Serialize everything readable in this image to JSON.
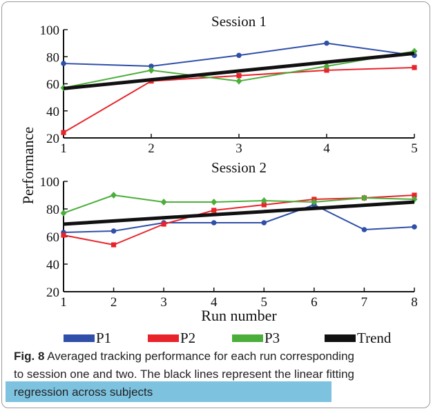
{
  "ylabel": "Performance",
  "xlabel": "Run number",
  "caption": {
    "fig_label": "Fig. 8",
    "line1": "Averaged tracking performance for each run corresponding",
    "line2": "to session one and two. The black lines represent the linear fitting",
    "line3": "regression across subjects"
  },
  "legend": [
    "P1",
    "P2",
    "P3",
    "Trend"
  ],
  "colors": {
    "P1": "#2f4fa8",
    "P2": "#e8232a",
    "P3": "#4cae3a",
    "Trend": "#111111"
  },
  "chart_data": [
    {
      "type": "line",
      "title": "Session 1",
      "x": [
        1,
        2,
        3,
        4,
        5
      ],
      "xlim": [
        1,
        5
      ],
      "ylim": [
        20,
        100
      ],
      "yticks": [
        20,
        40,
        60,
        80,
        100
      ],
      "series": [
        {
          "name": "P1",
          "values": [
            75,
            73,
            81,
            90,
            81
          ],
          "marker": "circle"
        },
        {
          "name": "P2",
          "values": [
            24,
            62,
            66,
            70,
            72
          ],
          "marker": "square"
        },
        {
          "name": "P3",
          "values": [
            57,
            70,
            62,
            73,
            84
          ],
          "marker": "diamond"
        },
        {
          "name": "Trend",
          "values": [
            56.5,
            63,
            69.5,
            76,
            82.5
          ],
          "marker": "none"
        }
      ]
    },
    {
      "type": "line",
      "title": "Session 2",
      "x": [
        1,
        2,
        3,
        4,
        5,
        6,
        7,
        8
      ],
      "xlim": [
        1,
        8
      ],
      "ylim": [
        20,
        100
      ],
      "yticks": [
        20,
        40,
        60,
        80,
        100
      ],
      "series": [
        {
          "name": "P1",
          "values": [
            63,
            64,
            70,
            70,
            70,
            83,
            65,
            67
          ],
          "marker": "circle"
        },
        {
          "name": "P2",
          "values": [
            61,
            54,
            69,
            79,
            83,
            87,
            88,
            90
          ],
          "marker": "square"
        },
        {
          "name": "P3",
          "values": [
            77,
            90,
            85,
            85,
            86,
            85,
            88,
            87
          ],
          "marker": "diamond"
        },
        {
          "name": "Trend",
          "values": [
            69,
            71.3,
            73.6,
            75.9,
            78.1,
            80.4,
            82.7,
            85
          ],
          "marker": "none"
        }
      ]
    }
  ]
}
